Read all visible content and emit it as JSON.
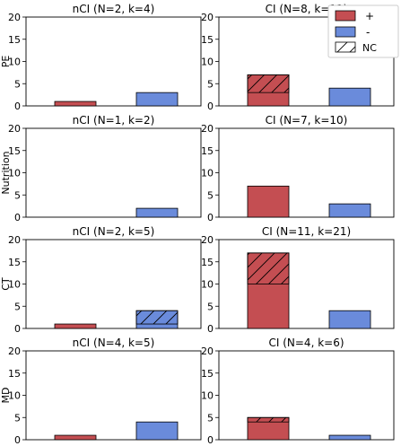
{
  "colors": {
    "positive": "#c44e52",
    "negative": "#6a8bdb",
    "edge": "#000000"
  },
  "row_labels": [
    "PE",
    "Nutrition",
    "CT",
    "MD"
  ],
  "legend": {
    "placement": "top-right",
    "entries": [
      {
        "label": "+",
        "swatch": "positive"
      },
      {
        "label": "-",
        "swatch": "negative"
      },
      {
        "label": "NC",
        "swatch": "hatch"
      }
    ]
  },
  "chart_data": [
    {
      "type": "bar",
      "title": "nCI (N=2, k=4)",
      "row": "PE",
      "ylim": [
        0,
        20
      ],
      "yticks": [
        0,
        5,
        10,
        15,
        20
      ],
      "categories": [
        "+",
        "-"
      ],
      "series": [
        {
          "name": "+",
          "values": [
            1,
            3
          ]
        }
      ],
      "bars": [
        {
          "category": "+",
          "total": 1,
          "nc": 0
        },
        {
          "category": "-",
          "total": 3,
          "nc": 0
        }
      ]
    },
    {
      "type": "bar",
      "title": "CI (N=8, k=11)",
      "row": "PE",
      "ylim": [
        0,
        20
      ],
      "yticks": [
        0,
        5,
        10,
        15,
        20
      ],
      "categories": [
        "+",
        "-"
      ],
      "bars": [
        {
          "category": "+",
          "total": 7,
          "nc": 4
        },
        {
          "category": "-",
          "total": 4,
          "nc": 0
        }
      ]
    },
    {
      "type": "bar",
      "title": "nCI (N=1, k=2)",
      "row": "Nutrition",
      "ylim": [
        0,
        20
      ],
      "yticks": [
        0,
        5,
        10,
        15,
        20
      ],
      "categories": [
        "+",
        "-"
      ],
      "bars": [
        {
          "category": "+",
          "total": 0,
          "nc": 0
        },
        {
          "category": "-",
          "total": 2,
          "nc": 0
        }
      ]
    },
    {
      "type": "bar",
      "title": "CI (N=7, k=10)",
      "row": "Nutrition",
      "ylim": [
        0,
        20
      ],
      "yticks": [
        0,
        5,
        10,
        15,
        20
      ],
      "categories": [
        "+",
        "-"
      ],
      "bars": [
        {
          "category": "+",
          "total": 7,
          "nc": 0
        },
        {
          "category": "-",
          "total": 3,
          "nc": 0
        }
      ]
    },
    {
      "type": "bar",
      "title": "nCI (N=2, k=5)",
      "row": "CT",
      "ylim": [
        0,
        20
      ],
      "yticks": [
        0,
        5,
        10,
        15,
        20
      ],
      "categories": [
        "+",
        "-"
      ],
      "bars": [
        {
          "category": "+",
          "total": 1,
          "nc": 0
        },
        {
          "category": "-",
          "total": 4,
          "nc": 3
        }
      ]
    },
    {
      "type": "bar",
      "title": "CI (N=11, k=21)",
      "row": "CT",
      "ylim": [
        0,
        20
      ],
      "yticks": [
        0,
        5,
        10,
        15,
        20
      ],
      "categories": [
        "+",
        "-"
      ],
      "bars": [
        {
          "category": "+",
          "total": 17,
          "nc": 7
        },
        {
          "category": "-",
          "total": 4,
          "nc": 0
        }
      ]
    },
    {
      "type": "bar",
      "title": "nCI (N=4, k=5)",
      "row": "MD",
      "ylim": [
        0,
        20
      ],
      "yticks": [
        0,
        5,
        10,
        15,
        20
      ],
      "categories": [
        "+",
        "-"
      ],
      "bars": [
        {
          "category": "+",
          "total": 1,
          "nc": 0
        },
        {
          "category": "-",
          "total": 4,
          "nc": 0
        }
      ]
    },
    {
      "type": "bar",
      "title": "CI (N=4, k=6)",
      "row": "MD",
      "ylim": [
        0,
        20
      ],
      "yticks": [
        0,
        5,
        10,
        15,
        20
      ],
      "categories": [
        "+",
        "-"
      ],
      "bars": [
        {
          "category": "+",
          "total": 5,
          "nc": 1
        },
        {
          "category": "-",
          "total": 1,
          "nc": 0
        }
      ]
    }
  ]
}
